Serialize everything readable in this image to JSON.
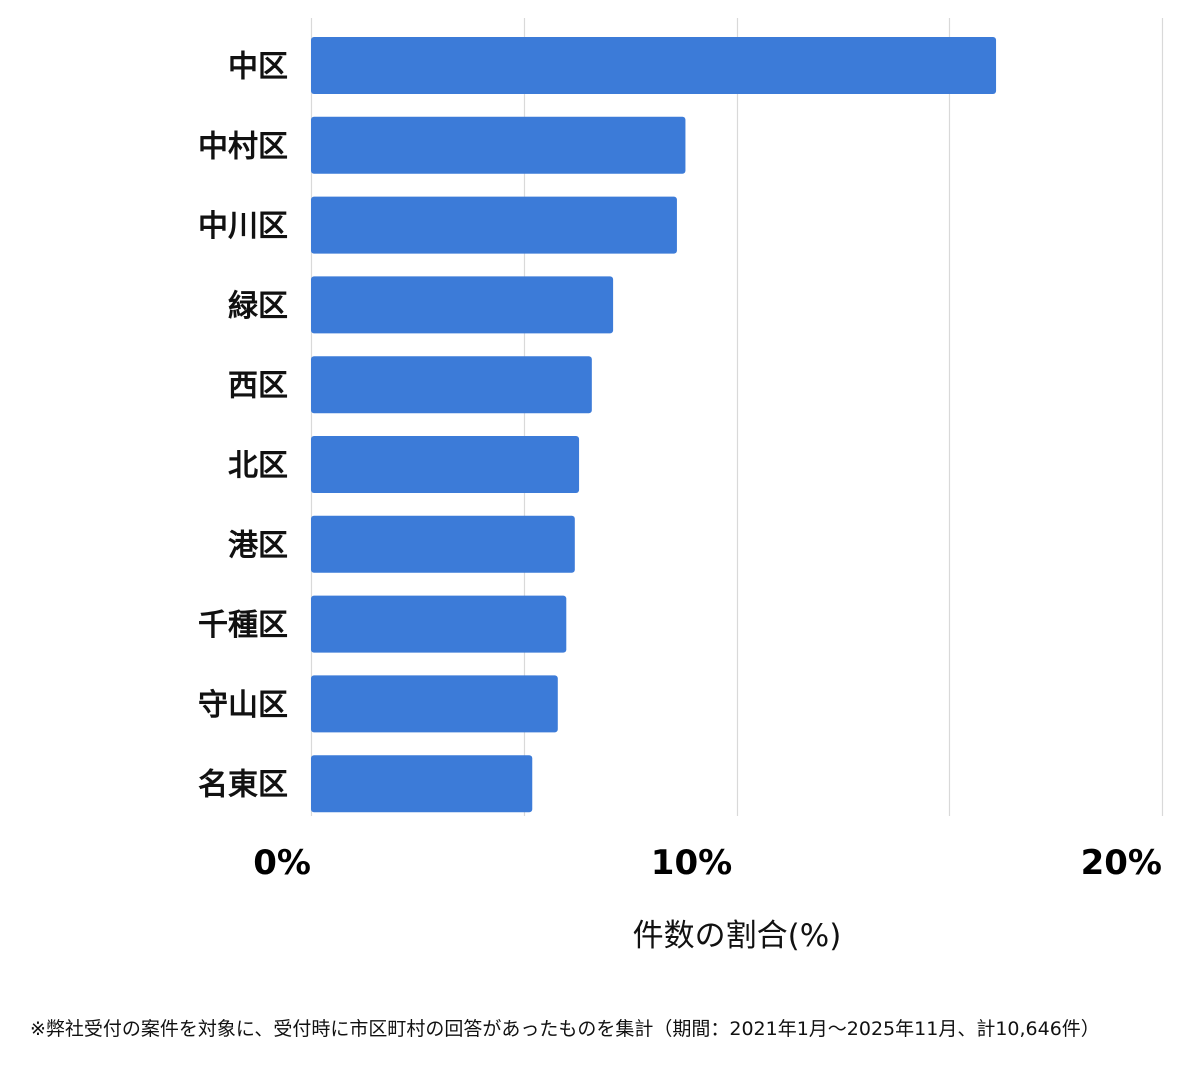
{
  "chart_data": {
    "type": "bar",
    "orientation": "horizontal",
    "categories": [
      "中区",
      "中村区",
      "中川区",
      "緑区",
      "西区",
      "北区",
      "港区",
      "千種区",
      "守山区",
      "名東区"
    ],
    "values": [
      16.1,
      8.8,
      8.6,
      7.1,
      6.6,
      6.3,
      6.2,
      6.0,
      5.8,
      5.2
    ],
    "xlim": [
      0,
      20
    ],
    "xticks": [
      0,
      10,
      20
    ],
    "xtick_labels": [
      "0%",
      "10%",
      "20%"
    ],
    "xlabel": "件数の割合(%)",
    "ylabel": "",
    "title": "",
    "grid": true,
    "bar_color": "#3c7bd8"
  },
  "footnote": "※弊社受付の案件を対象に、受付時に市区町村の回答があったものを集計（期間：2021年1月～2025年11月、計10,646件）"
}
